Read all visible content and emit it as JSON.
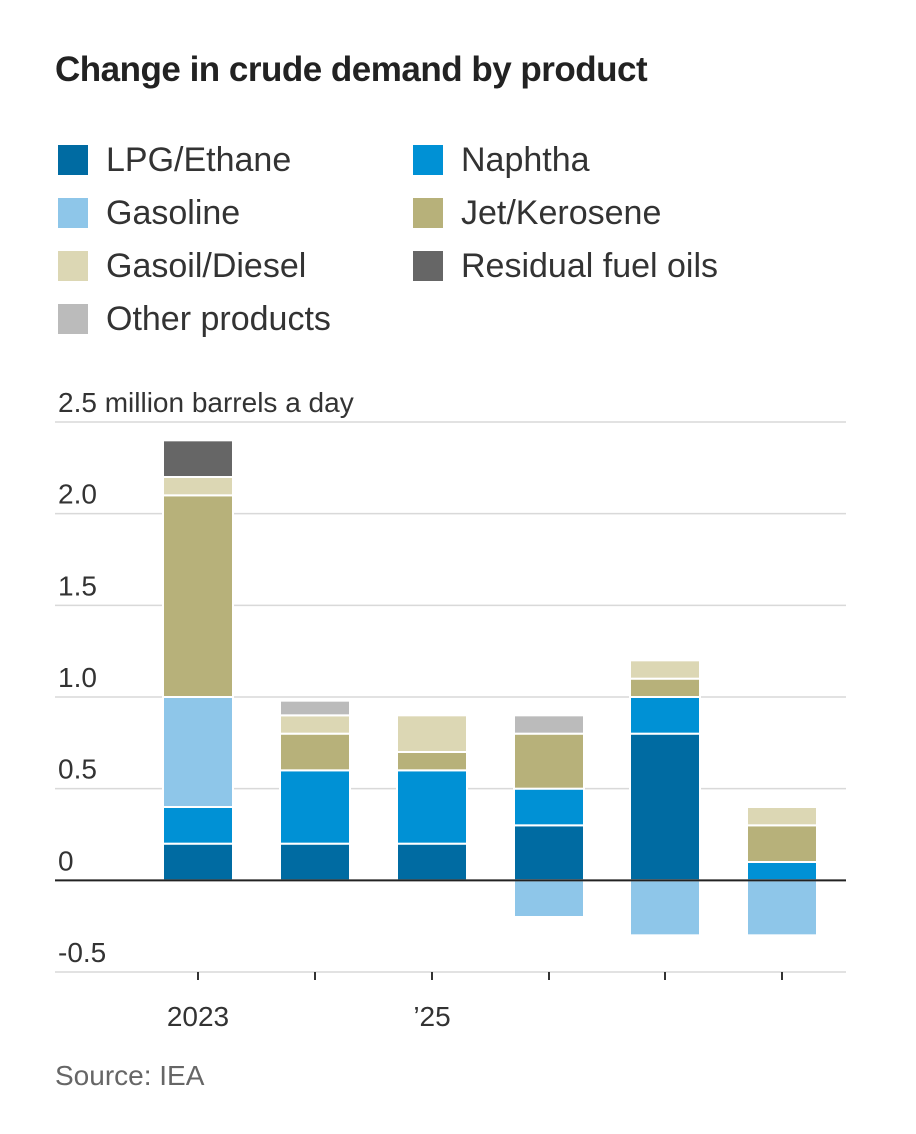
{
  "chart_data": {
    "type": "bar",
    "stacked": true,
    "title": "Change in crude demand by product",
    "ylabel": "2.5 million barrels a day",
    "ylim": [
      -0.5,
      2.5
    ],
    "yticks": [
      {
        "value": 2.5,
        "label": "2.5 million barrels a day"
      },
      {
        "value": 2.0,
        "label": "2.0"
      },
      {
        "value": 1.5,
        "label": "1.5"
      },
      {
        "value": 1.0,
        "label": "1.0"
      },
      {
        "value": 0.5,
        "label": "0.5"
      },
      {
        "value": 0,
        "label": "0"
      },
      {
        "value": -0.5,
        "label": "-0.5"
      }
    ],
    "categories": [
      "2023",
      "",
      "’25",
      "",
      "",
      ""
    ],
    "series": [
      {
        "name": "LPG/Ethane",
        "color": "#006ba2",
        "values": [
          0.2,
          0.2,
          0.2,
          0.3,
          0.8,
          0
        ]
      },
      {
        "name": "Naphtha",
        "color": "#0091d5",
        "values": [
          0.2,
          0.4,
          0.4,
          0.2,
          0.2,
          0.1
        ]
      },
      {
        "name": "Gasoline",
        "color": "#8ec6e9",
        "values": [
          0.6,
          0,
          0,
          -0.2,
          -0.3,
          -0.3
        ]
      },
      {
        "name": "Jet/Kerosene",
        "color": "#b7b17a",
        "values": [
          1.1,
          0.2,
          0.1,
          0.3,
          0.1,
          0.2
        ]
      },
      {
        "name": "Gasoil/Diesel",
        "color": "#dcd7b4",
        "values": [
          0.1,
          0.1,
          0.2,
          0,
          0.1,
          0.1
        ]
      },
      {
        "name": "Residual fuel oils",
        "color": "#666666",
        "values": [
          0.2,
          0,
          0,
          0,
          0,
          0
        ]
      },
      {
        "name": "Other products",
        "color": "#bbbbbb",
        "values": [
          0,
          0.08,
          0,
          0.1,
          0,
          0
        ]
      }
    ],
    "legend_order": [
      "LPG/Ethane",
      "Naphtha",
      "Gasoline",
      "Jet/Kerosene",
      "Gasoil/Diesel",
      "Residual fuel oils",
      "Other products"
    ],
    "legend_position": "top-left",
    "grid": true
  },
  "source": "Source: IEA"
}
